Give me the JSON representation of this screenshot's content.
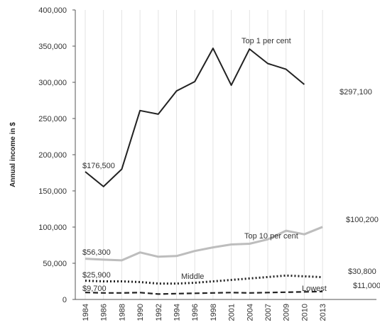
{
  "chart_data": {
    "type": "line",
    "ylabel": "Annual income in $",
    "ylim": [
      0,
      400000
    ],
    "yticks": [
      "0",
      "50,000",
      "100,000",
      "150,000",
      "200,000",
      "250,000",
      "300,000",
      "350,000",
      "400,000"
    ],
    "grid": "vertical",
    "x": [
      "1984",
      "1986",
      "1988",
      "1990",
      "1992",
      "1994",
      "1996",
      "1998",
      "2001",
      "2004",
      "2007",
      "2009",
      "2010",
      "2013"
    ],
    "series": [
      {
        "name": "Top 1 per cent",
        "color": "#222222",
        "style": "solid",
        "values": [
          176500,
          156000,
          180000,
          261000,
          256000,
          288000,
          301000,
          347000,
          296000,
          346000,
          326000,
          318000,
          297100,
          null
        ]
      },
      {
        "name": "Top 10 per cent",
        "color": "#bdbdbd",
        "style": "solid",
        "values": [
          56300,
          55000,
          54000,
          65000,
          59000,
          60000,
          67000,
          72000,
          76000,
          77000,
          83000,
          95000,
          90000,
          100200
        ]
      },
      {
        "name": "Middle",
        "color": "#222222",
        "style": "dotted",
        "values": [
          25900,
          25000,
          25000,
          24000,
          22000,
          22000,
          23000,
          25000,
          27000,
          29000,
          31000,
          33000,
          32000,
          30800
        ]
      },
      {
        "name": "Lowest",
        "color": "#222222",
        "style": "dashed",
        "values": [
          9700,
          9000,
          9000,
          9500,
          7500,
          8000,
          8500,
          9000,
          9500,
          9000,
          9500,
          10000,
          10500,
          11000
        ]
      }
    ],
    "annotations": {
      "top1_start": "$176,500",
      "top1_end": "$297,100",
      "top10_start": "$56,300",
      "top10_end": "$100,200",
      "middle_start": "$25,900",
      "middle_end": "$30,800",
      "lowest_start": "$9,700",
      "lowest_end": "$11,000"
    }
  }
}
